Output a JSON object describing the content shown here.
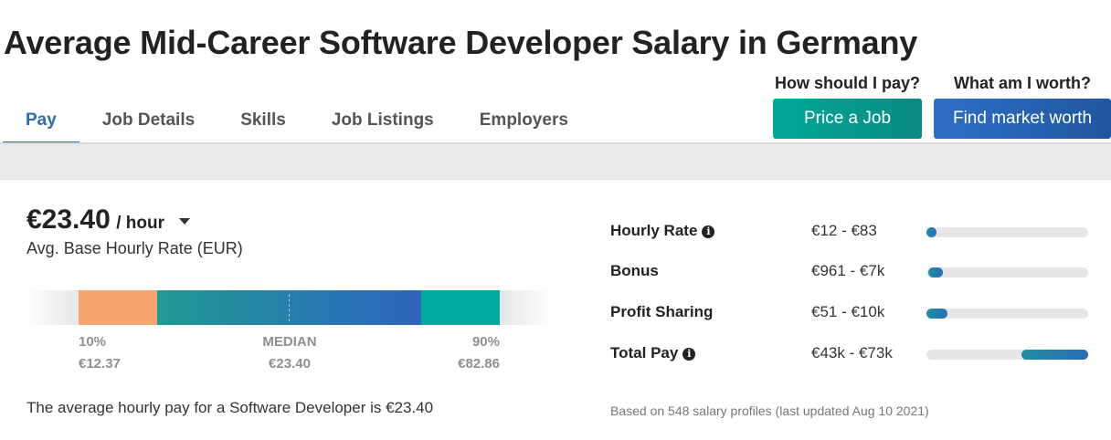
{
  "page": {
    "title": "Average Mid-Career Software Developer Salary in Germany"
  },
  "tabs": [
    {
      "label": "Pay",
      "active": true
    },
    {
      "label": "Job Details",
      "active": false
    },
    {
      "label": "Skills",
      "active": false
    },
    {
      "label": "Job Listings",
      "active": false
    },
    {
      "label": "Employers",
      "active": false
    }
  ],
  "cta": {
    "pay_caption": "How should I pay?",
    "price_button": "Price a Job",
    "worth_caption": "What am I worth?",
    "worth_button": "Find market worth"
  },
  "summary": {
    "amount": "€23.40",
    "unit": "/ hour",
    "label": "Avg. Base Hourly Rate (EUR)",
    "sentence": "The average hourly pay for a Software Developer is €23.40"
  },
  "distribution": {
    "low": {
      "percentile": "10%",
      "value": "€12.37"
    },
    "median": {
      "percentile": "MEDIAN",
      "value": "€23.40"
    },
    "high": {
      "percentile": "90%",
      "value": "€82.86"
    }
  },
  "compensation": [
    {
      "label": "Hourly Rate",
      "range": "€12 - €83",
      "info": true,
      "fill_start": 0.0,
      "fill_end": 0.06
    },
    {
      "label": "Bonus",
      "range": "€961 - €7k",
      "info": false,
      "fill_start": 0.01,
      "fill_end": 0.1
    },
    {
      "label": "Profit Sharing",
      "range": "€51 - €10k",
      "info": false,
      "fill_start": 0.0,
      "fill_end": 0.13
    },
    {
      "label": "Total Pay",
      "range": "€43k - €73k",
      "info": true,
      "fill_start": 0.59,
      "fill_end": 1.0
    }
  ],
  "footnote": "Based on 548 salary profiles (last updated Aug 10 2021)",
  "colors": {
    "accent_blue": "#2b6cb8",
    "teal_button": "#00a89a",
    "orange_segment": "#f7a56f"
  }
}
